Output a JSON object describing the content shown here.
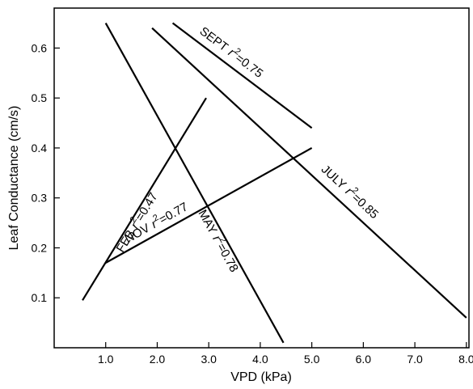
{
  "chart_data": {
    "type": "line",
    "title": "",
    "xlabel": "VPD (kPa)",
    "ylabel": "Leaf Conductance (cm/s)",
    "xlim": [
      0,
      8.05
    ],
    "ylim": [
      0,
      0.68
    ],
    "grid": false,
    "xticks": [
      "1.0",
      "2.0",
      "3.0",
      "4.0",
      "5.0",
      "6.0",
      "7.0",
      "8.0"
    ],
    "yticks": [
      "0.1",
      "0.2",
      "0.3",
      "0.4",
      "0.5",
      "0.6"
    ],
    "series": [
      {
        "name": "SEPT",
        "r2": "0.75",
        "x": [
          2.3,
          5.0
        ],
        "y": [
          0.65,
          0.44
        ]
      },
      {
        "name": "JULY",
        "r2": "0.85",
        "x": [
          1.9,
          8.0
        ],
        "y": [
          0.64,
          0.06
        ]
      },
      {
        "name": "MAY",
        "r2": "0.78",
        "x": [
          1.0,
          4.45
        ],
        "y": [
          0.65,
          0.01
        ]
      },
      {
        "name": "FEB",
        "r2": "0.47",
        "x": [
          0.55,
          2.95
        ],
        "y": [
          0.095,
          0.5
        ]
      },
      {
        "name": "NOV",
        "r2": "0.77",
        "x": [
          1.0,
          5.0
        ],
        "y": [
          0.17,
          0.4
        ]
      }
    ]
  }
}
